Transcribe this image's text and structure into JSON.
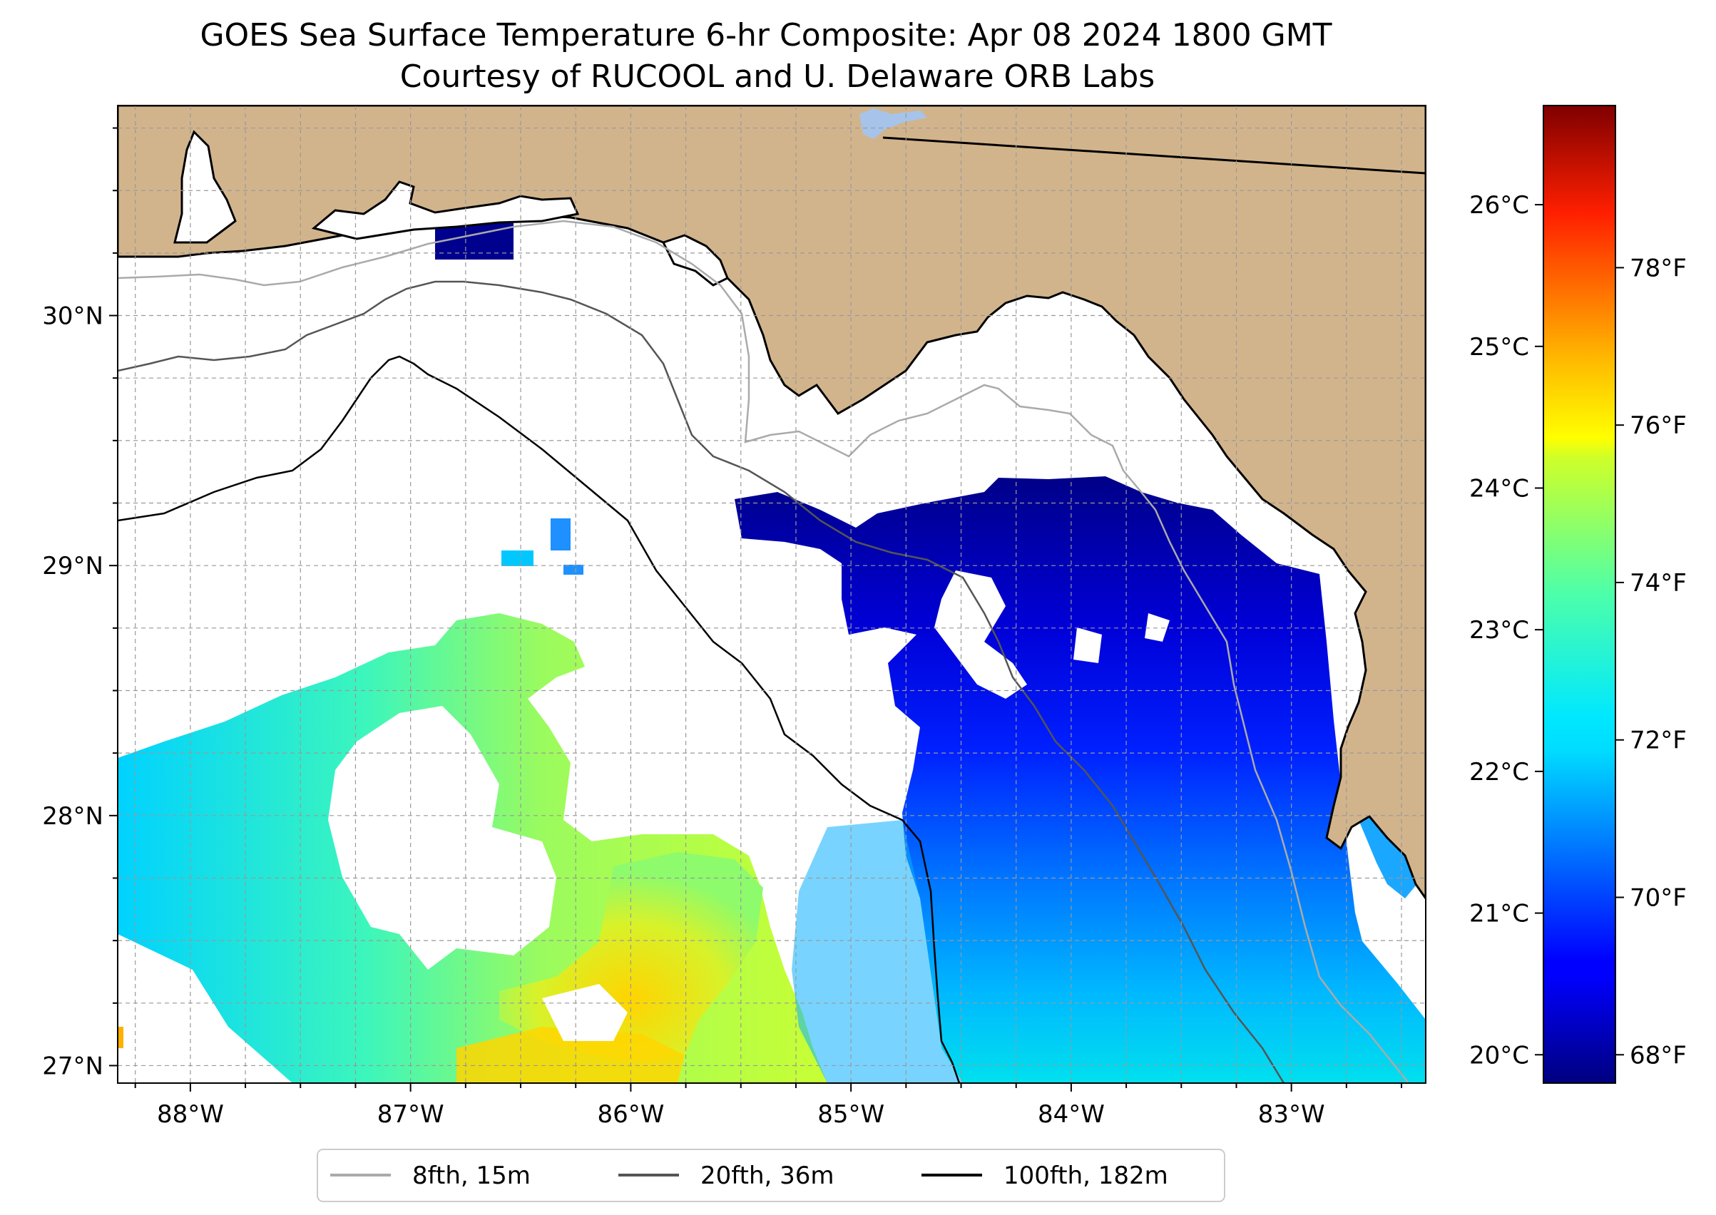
{
  "title_line1": "GOES Sea Surface Temperature 6-hr Composite: Apr 08 2024 1800 GMT",
  "title_line2": "Courtesy of RUCOOL and U. Delaware ORB Labs",
  "colors": {
    "land": "#d2b48c",
    "ocean": "#ffffff",
    "lake": "#a6c4ea",
    "isobath_15m": "#aaaaaa",
    "isobath_36m": "#555555",
    "isobath_182m": "#000000"
  },
  "chart_data": {
    "type": "heatmap",
    "variable": "sea surface temperature",
    "extent": {
      "lon": [
        -88.33,
        -82.39
      ],
      "lat": [
        26.93,
        30.84
      ]
    },
    "x_ticks": [
      {
        "value": -88,
        "label": "88°W"
      },
      {
        "value": -87,
        "label": "87°W"
      },
      {
        "value": -86,
        "label": "86°W"
      },
      {
        "value": -85,
        "label": "85°W"
      },
      {
        "value": -84,
        "label": "84°W"
      },
      {
        "value": -83,
        "label": "83°W"
      }
    ],
    "y_ticks": [
      {
        "value": 27,
        "label": "27°N"
      },
      {
        "value": 28,
        "label": "28°N"
      },
      {
        "value": 29,
        "label": "29°N"
      },
      {
        "value": 30,
        "label": "30°N"
      }
    ],
    "colorbar": {
      "range_c": [
        19.8,
        26.7
      ],
      "celsius_ticks": [
        {
          "value": 20,
          "label": "20°C"
        },
        {
          "value": 21,
          "label": "21°C"
        },
        {
          "value": 22,
          "label": "22°C"
        },
        {
          "value": 23,
          "label": "23°C"
        },
        {
          "value": 24,
          "label": "24°C"
        },
        {
          "value": 25,
          "label": "25°C"
        },
        {
          "value": 26,
          "label": "26°C"
        }
      ],
      "fahrenheit_ticks": [
        {
          "value": 68,
          "label": "68°F"
        },
        {
          "value": 70,
          "label": "70°F"
        },
        {
          "value": 72,
          "label": "72°F"
        },
        {
          "value": 74,
          "label": "74°F"
        },
        {
          "value": 76,
          "label": "76°F"
        },
        {
          "value": 78,
          "label": "78°F"
        }
      ],
      "colormap": "jet"
    },
    "legend": [
      {
        "label": "8fth, 15m",
        "color": "#aaaaaa"
      },
      {
        "label": "20fth, 36m",
        "color": "#555555"
      },
      {
        "label": "100fth, 182m",
        "color": "#000000"
      }
    ],
    "legend_position": "bottom-center",
    "grid": true
  }
}
